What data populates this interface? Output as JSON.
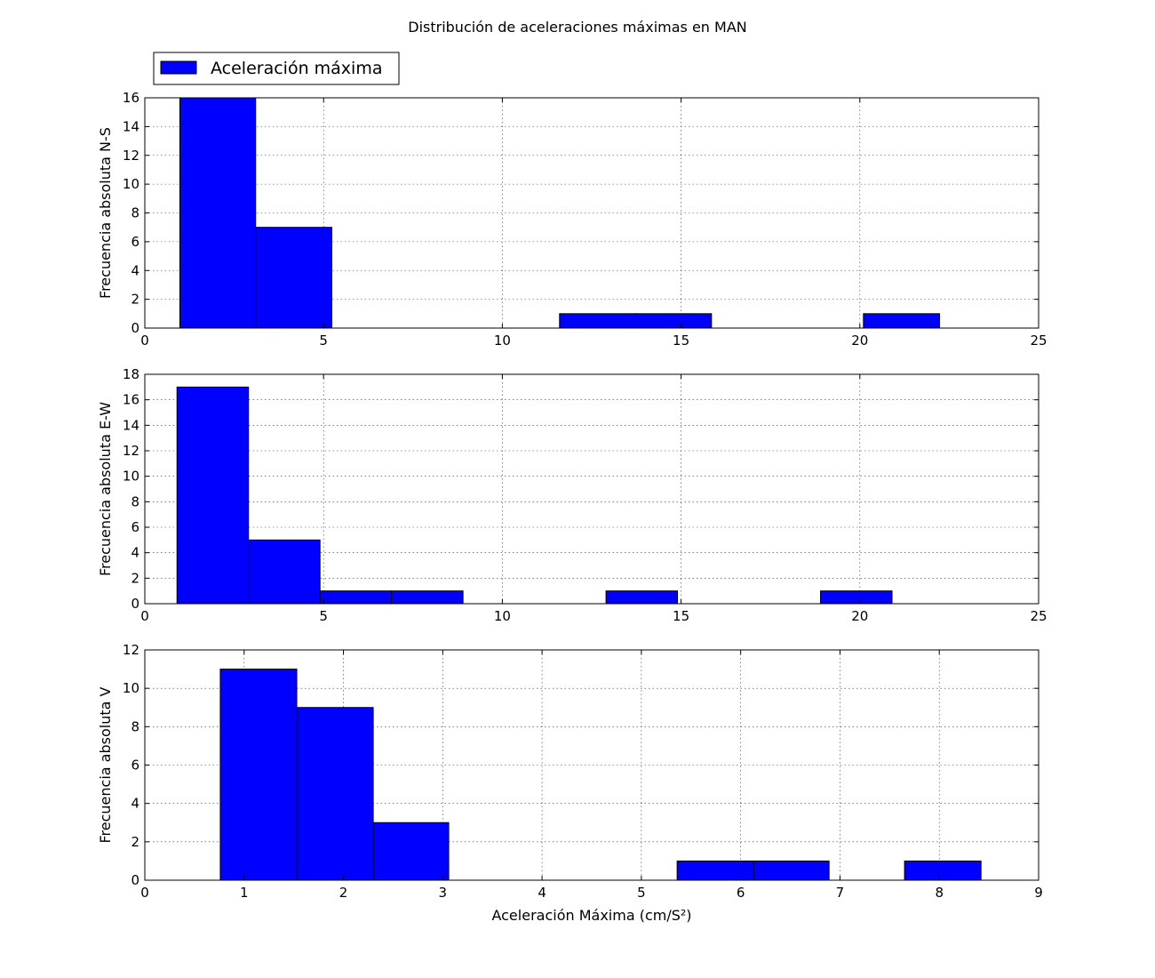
{
  "figure": {
    "suptitle": "Distribución de aceleraciones máximas en MAN",
    "legend": {
      "label": "Aceleración máxima",
      "color": "#0000ff",
      "placement": "top-left"
    }
  },
  "chart_data": [
    {
      "type": "bar",
      "ylabel": "Frecuencia absoluta N-S",
      "xlabel": "",
      "xlim": [
        0,
        25
      ],
      "ylim": [
        0,
        16
      ],
      "xticks": [
        0,
        5,
        10,
        15,
        20,
        25
      ],
      "yticks": [
        0,
        2,
        4,
        6,
        8,
        10,
        12,
        14,
        16
      ],
      "grid": true,
      "bins": [
        {
          "x0": 0.98,
          "x1": 3.1,
          "value": 16
        },
        {
          "x0": 3.1,
          "x1": 5.23,
          "value": 7
        },
        {
          "x0": 11.6,
          "x1": 13.73,
          "value": 1
        },
        {
          "x0": 13.73,
          "x1": 15.85,
          "value": 1
        },
        {
          "x0": 20.1,
          "x1": 22.23,
          "value": 1
        }
      ]
    },
    {
      "type": "bar",
      "ylabel": "Frecuencia absoluta E-W",
      "xlabel": "",
      "xlim": [
        0,
        25
      ],
      "ylim": [
        0,
        18
      ],
      "xticks": [
        0,
        5,
        10,
        15,
        20,
        25
      ],
      "yticks": [
        0,
        2,
        4,
        6,
        8,
        10,
        12,
        14,
        16,
        18
      ],
      "grid": true,
      "bins": [
        {
          "x0": 0.9,
          "x1": 2.9,
          "value": 17
        },
        {
          "x0": 2.9,
          "x1": 4.9,
          "value": 5
        },
        {
          "x0": 4.9,
          "x1": 6.9,
          "value": 1
        },
        {
          "x0": 6.9,
          "x1": 8.9,
          "value": 1
        },
        {
          "x0": 12.9,
          "x1": 14.9,
          "value": 1
        },
        {
          "x0": 18.9,
          "x1": 20.9,
          "value": 1
        }
      ]
    },
    {
      "type": "bar",
      "ylabel": "Frecuencia absoluta V",
      "xlabel": "Aceleración Máxima (cm/S²)",
      "xlim": [
        0,
        9
      ],
      "ylim": [
        0,
        12
      ],
      "xticks": [
        0,
        1,
        2,
        3,
        4,
        5,
        6,
        7,
        8,
        9
      ],
      "yticks": [
        0,
        2,
        4,
        6,
        8,
        10,
        12
      ],
      "grid": true,
      "bins": [
        {
          "x0": 0.76,
          "x1": 1.53,
          "value": 11
        },
        {
          "x0": 1.53,
          "x1": 2.3,
          "value": 9
        },
        {
          "x0": 2.3,
          "x1": 3.06,
          "value": 3
        },
        {
          "x0": 5.36,
          "x1": 6.13,
          "value": 1
        },
        {
          "x0": 6.13,
          "x1": 6.89,
          "value": 1
        },
        {
          "x0": 7.65,
          "x1": 8.42,
          "value": 1
        }
      ]
    }
  ]
}
